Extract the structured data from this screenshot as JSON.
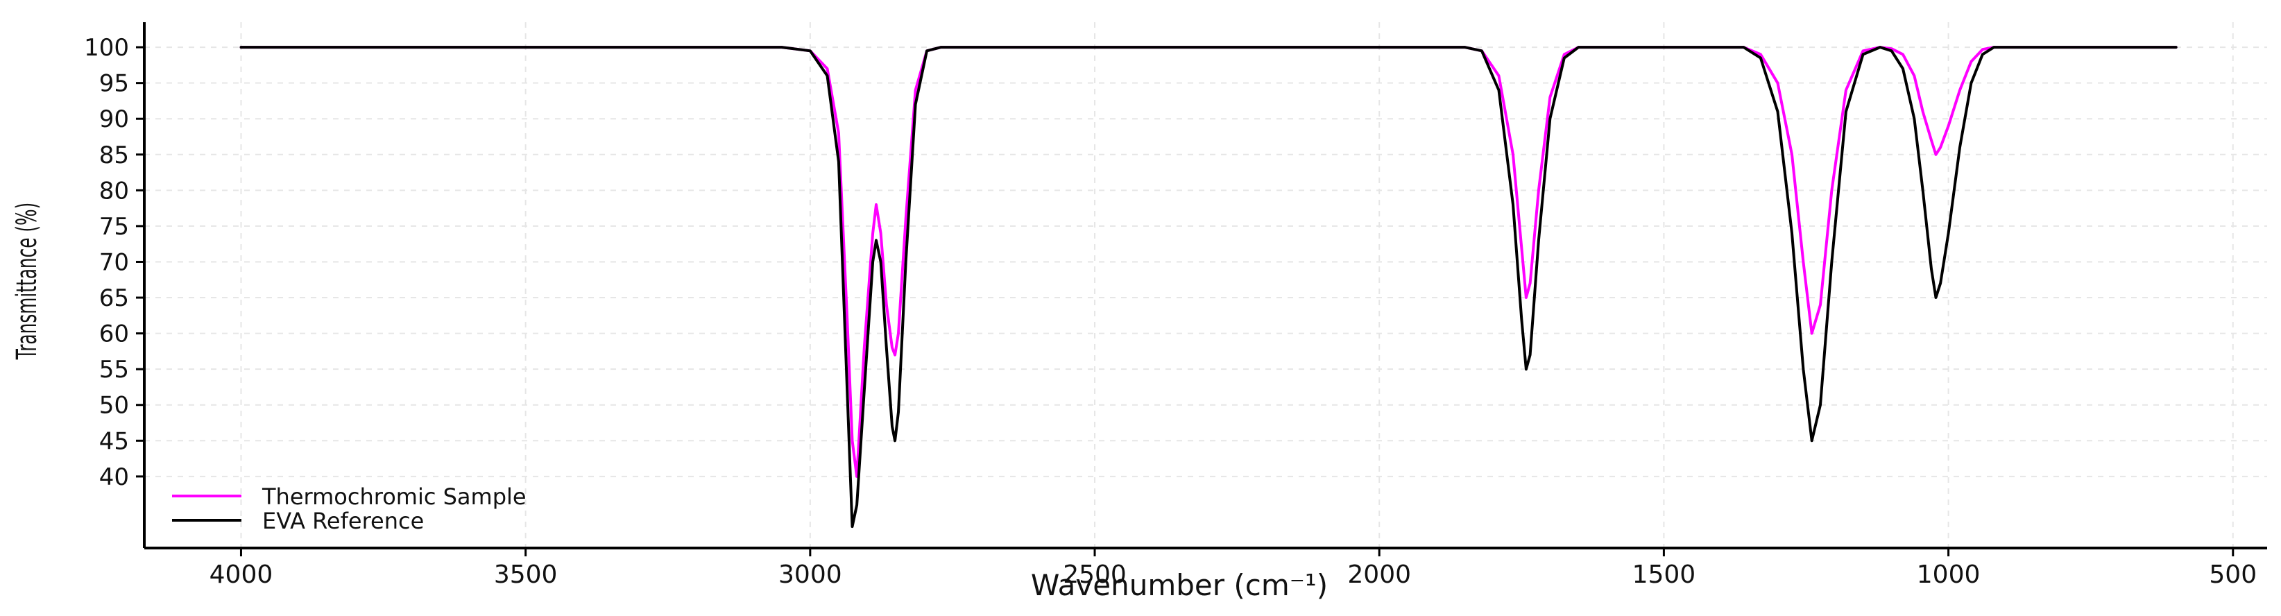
{
  "chart_data": {
    "type": "line",
    "xlabel": "Wavenumber (cm⁻¹)",
    "ylabel": "Transmittance (%)",
    "xlim": [
      4170,
      440
    ],
    "ylim": [
      30,
      103.5
    ],
    "x_reversed": true,
    "grid": true,
    "legend": "bottom-left",
    "x_ticks": [
      4000,
      3500,
      3000,
      2500,
      2000,
      1500,
      1000,
      500
    ],
    "y_ticks": [
      40,
      45,
      50,
      55,
      60,
      65,
      70,
      75,
      80,
      85,
      90,
      95,
      100
    ],
    "series": [
      {
        "name": "Thermochromic Sample",
        "color": "#ff00ff",
        "x": [
          4000,
          3050,
          3000,
          2970,
          2950,
          2935,
          2926,
          2918,
          2905,
          2890,
          2884,
          2876,
          2866,
          2856,
          2851,
          2845,
          2832,
          2815,
          2795,
          2770,
          2500,
          1850,
          1820,
          1790,
          1765,
          1750,
          1742,
          1735,
          1720,
          1700,
          1675,
          1650,
          1620,
          1500,
          1360,
          1330,
          1300,
          1275,
          1255,
          1240,
          1225,
          1205,
          1180,
          1150,
          1120,
          1100,
          1080,
          1060,
          1045,
          1030,
          1022,
          1014,
          1000,
          980,
          960,
          940,
          920,
          600
        ],
        "y": [
          100,
          100,
          99.5,
          97,
          88,
          62,
          45,
          40,
          58,
          74,
          78,
          74,
          64,
          58,
          57,
          60,
          76,
          94,
          99.5,
          100,
          100,
          100,
          99.5,
          96,
          85,
          72,
          65,
          67,
          80,
          93,
          99,
          100,
          100,
          100,
          100,
          99,
          95,
          85,
          70,
          60,
          64,
          80,
          94,
          99.5,
          100,
          99.8,
          99,
          96,
          91,
          87,
          85,
          86,
          89,
          94,
          98,
          99.7,
          100,
          100
        ]
      },
      {
        "name": "EVA Reference",
        "color": "#000000",
        "x": [
          4000,
          3050,
          3000,
          2970,
          2950,
          2935,
          2926,
          2918,
          2905,
          2890,
          2884,
          2876,
          2866,
          2856,
          2851,
          2845,
          2832,
          2815,
          2795,
          2770,
          2500,
          1850,
          1820,
          1790,
          1765,
          1750,
          1742,
          1735,
          1720,
          1700,
          1675,
          1650,
          1620,
          1500,
          1360,
          1330,
          1300,
          1275,
          1255,
          1240,
          1225,
          1205,
          1180,
          1150,
          1120,
          1100,
          1080,
          1060,
          1045,
          1030,
          1022,
          1014,
          1000,
          980,
          960,
          940,
          920,
          600
        ],
        "y": [
          100,
          100,
          99.5,
          96,
          84,
          52,
          33,
          36,
          52,
          70,
          73,
          70,
          58,
          47,
          45,
          49,
          70,
          92,
          99.5,
          100,
          100,
          100,
          99.5,
          94,
          78,
          62,
          55,
          57,
          73,
          90,
          98.5,
          100,
          100,
          100,
          100,
          98.5,
          91,
          74,
          55,
          45,
          50,
          70,
          91,
          99,
          100,
          99.5,
          97,
          90,
          80,
          69,
          65,
          67,
          74,
          86,
          95,
          99,
          100,
          100
        ]
      }
    ]
  }
}
